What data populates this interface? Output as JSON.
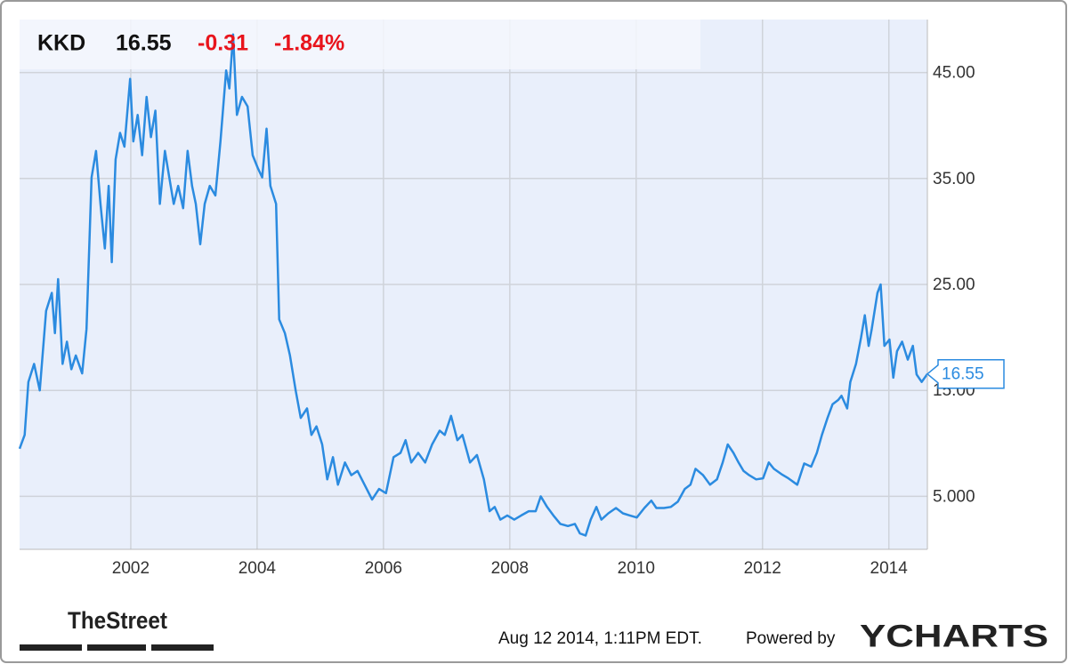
{
  "chart_data": {
    "type": "line",
    "ticker": "KKD",
    "price": 16.55,
    "change": -0.31,
    "change_percent": "-1.84%",
    "color": "#2b8be0",
    "x": [
      2000.24,
      2000.32,
      2000.38,
      2000.47,
      2000.56,
      2000.66,
      2000.75,
      2000.8,
      2000.85,
      2000.92,
      2000.99,
      2001.06,
      2001.13,
      2001.23,
      2001.3,
      2001.38,
      2001.45,
      2001.52,
      2001.59,
      2001.65,
      2001.7,
      2001.76,
      2001.83,
      2001.9,
      2001.99,
      2002.04,
      2002.11,
      2002.18,
      2002.25,
      2002.32,
      2002.39,
      2002.46,
      2002.54,
      2002.61,
      2002.68,
      2002.75,
      2002.83,
      2002.9,
      2002.97,
      2003.03,
      2003.1,
      2003.17,
      2003.25,
      2003.34,
      2003.42,
      2003.51,
      2003.56,
      2003.62,
      2003.68,
      2003.76,
      2003.85,
      2003.93,
      2004.01,
      2004.08,
      2004.15,
      2004.21,
      2004.3,
      2004.35,
      2004.44,
      2004.52,
      2004.61,
      2004.69,
      2004.79,
      2004.86,
      2004.94,
      2005.03,
      2005.11,
      2005.2,
      2005.28,
      2005.39,
      2005.49,
      2005.59,
      2005.7,
      2005.82,
      2005.93,
      2006.04,
      2006.16,
      2006.27,
      2006.35,
      2006.44,
      2006.55,
      2006.66,
      2006.77,
      2006.89,
      2006.97,
      2007.07,
      2007.17,
      2007.25,
      2007.37,
      2007.48,
      2007.59,
      2007.68,
      2007.76,
      2007.85,
      2007.96,
      2008.07,
      2008.18,
      2008.3,
      2008.41,
      2008.49,
      2008.59,
      2008.69,
      2008.8,
      2008.92,
      2009.03,
      2009.11,
      2009.2,
      2009.28,
      2009.37,
      2009.45,
      2009.56,
      2009.68,
      2009.79,
      2009.9,
      2010.01,
      2010.13,
      2010.24,
      2010.32,
      2010.44,
      2010.55,
      2010.66,
      2010.77,
      2010.86,
      2010.94,
      2011.06,
      2011.17,
      2011.28,
      2011.37,
      2011.45,
      2011.54,
      2011.62,
      2011.7,
      2011.79,
      2011.9,
      2012.01,
      2012.1,
      2012.18,
      2012.3,
      2012.41,
      2012.55,
      2012.66,
      2012.77,
      2012.86,
      2012.94,
      2013.03,
      2013.11,
      2013.2,
      2013.25,
      2013.34,
      2013.39,
      2013.48,
      2013.56,
      2013.62,
      2013.68,
      2013.73,
      2013.82,
      2013.87,
      2013.93,
      2014.01,
      2014.07,
      2014.13,
      2014.21,
      2014.3,
      2014.38,
      2014.44,
      2014.52,
      2014.61
    ],
    "values": [
      9.5,
      10.8,
      15.8,
      17.5,
      15,
      22.5,
      24.2,
      20.4,
      25.5,
      17.5,
      19.6,
      17,
      18.3,
      16.6,
      20.8,
      35.1,
      37.6,
      32.6,
      28.4,
      34.3,
      27.1,
      36.8,
      39.3,
      38,
      44.4,
      38.5,
      41,
      37.2,
      42.7,
      38.9,
      41.4,
      32.6,
      37.6,
      35.1,
      32.6,
      34.3,
      32.2,
      37.6,
      34.3,
      32.6,
      28.8,
      32.6,
      34.3,
      33.4,
      38.5,
      45.2,
      43.5,
      48.6,
      41,
      42.7,
      41.8,
      37.2,
      36,
      35.1,
      39.7,
      34.3,
      32.6,
      21.7,
      20.4,
      18.3,
      15,
      12.4,
      13.3,
      10.8,
      11.6,
      9.9,
      6.6,
      8.7,
      6.1,
      8.2,
      7,
      7.4,
      6.1,
      4.7,
      5.7,
      5.3,
      8.7,
      9.1,
      10.3,
      8.2,
      9.1,
      8.2,
      9.9,
      11.2,
      10.8,
      12.6,
      10.3,
      10.8,
      8.2,
      8.9,
      6.6,
      3.6,
      4,
      2.8,
      3.2,
      2.8,
      3.2,
      3.6,
      3.6,
      5,
      4,
      3.2,
      2.4,
      2.2,
      2.4,
      1.5,
      1.3,
      2.8,
      4,
      2.8,
      3.4,
      3.9,
      3.4,
      3.2,
      3,
      3.9,
      4.6,
      3.9,
      3.9,
      4,
      4.5,
      5.7,
      6.1,
      7.6,
      7,
      6.1,
      6.6,
      8.2,
      9.9,
      9.1,
      8.2,
      7.4,
      7,
      6.6,
      6.7,
      8.2,
      7.6,
      7.1,
      6.7,
      6.1,
      8.1,
      7.8,
      9.1,
      10.8,
      12.4,
      13.7,
      14.1,
      14.5,
      13.3,
      15.8,
      17.5,
      20,
      22.1,
      19.2,
      20.8,
      24.2,
      25,
      19.2,
      19.8,
      16.2,
      18.7,
      19.6,
      17.9,
      19.2,
      16.5,
      15.8,
      16.55
    ],
    "xlim": [
      2000.24,
      2014.61
    ],
    "xticks": [
      2002,
      2004,
      2006,
      2008,
      2010,
      2012,
      2014
    ],
    "ylim": [
      0,
      50
    ],
    "yticks": [
      {
        "value": 5,
        "label": "5.000"
      },
      {
        "value": 15,
        "label": "15.00"
      },
      {
        "value": 25,
        "label": "25.00"
      },
      {
        "value": 35,
        "label": "35.00"
      },
      {
        "value": 45,
        "label": "45.00"
      }
    ],
    "grid": true
  },
  "footer": {
    "branding": "TheStreet",
    "timestamp": "Aug 12 2014, 1:11PM EDT.",
    "powered_by": "Powered by",
    "provider": "YCHARTS"
  }
}
